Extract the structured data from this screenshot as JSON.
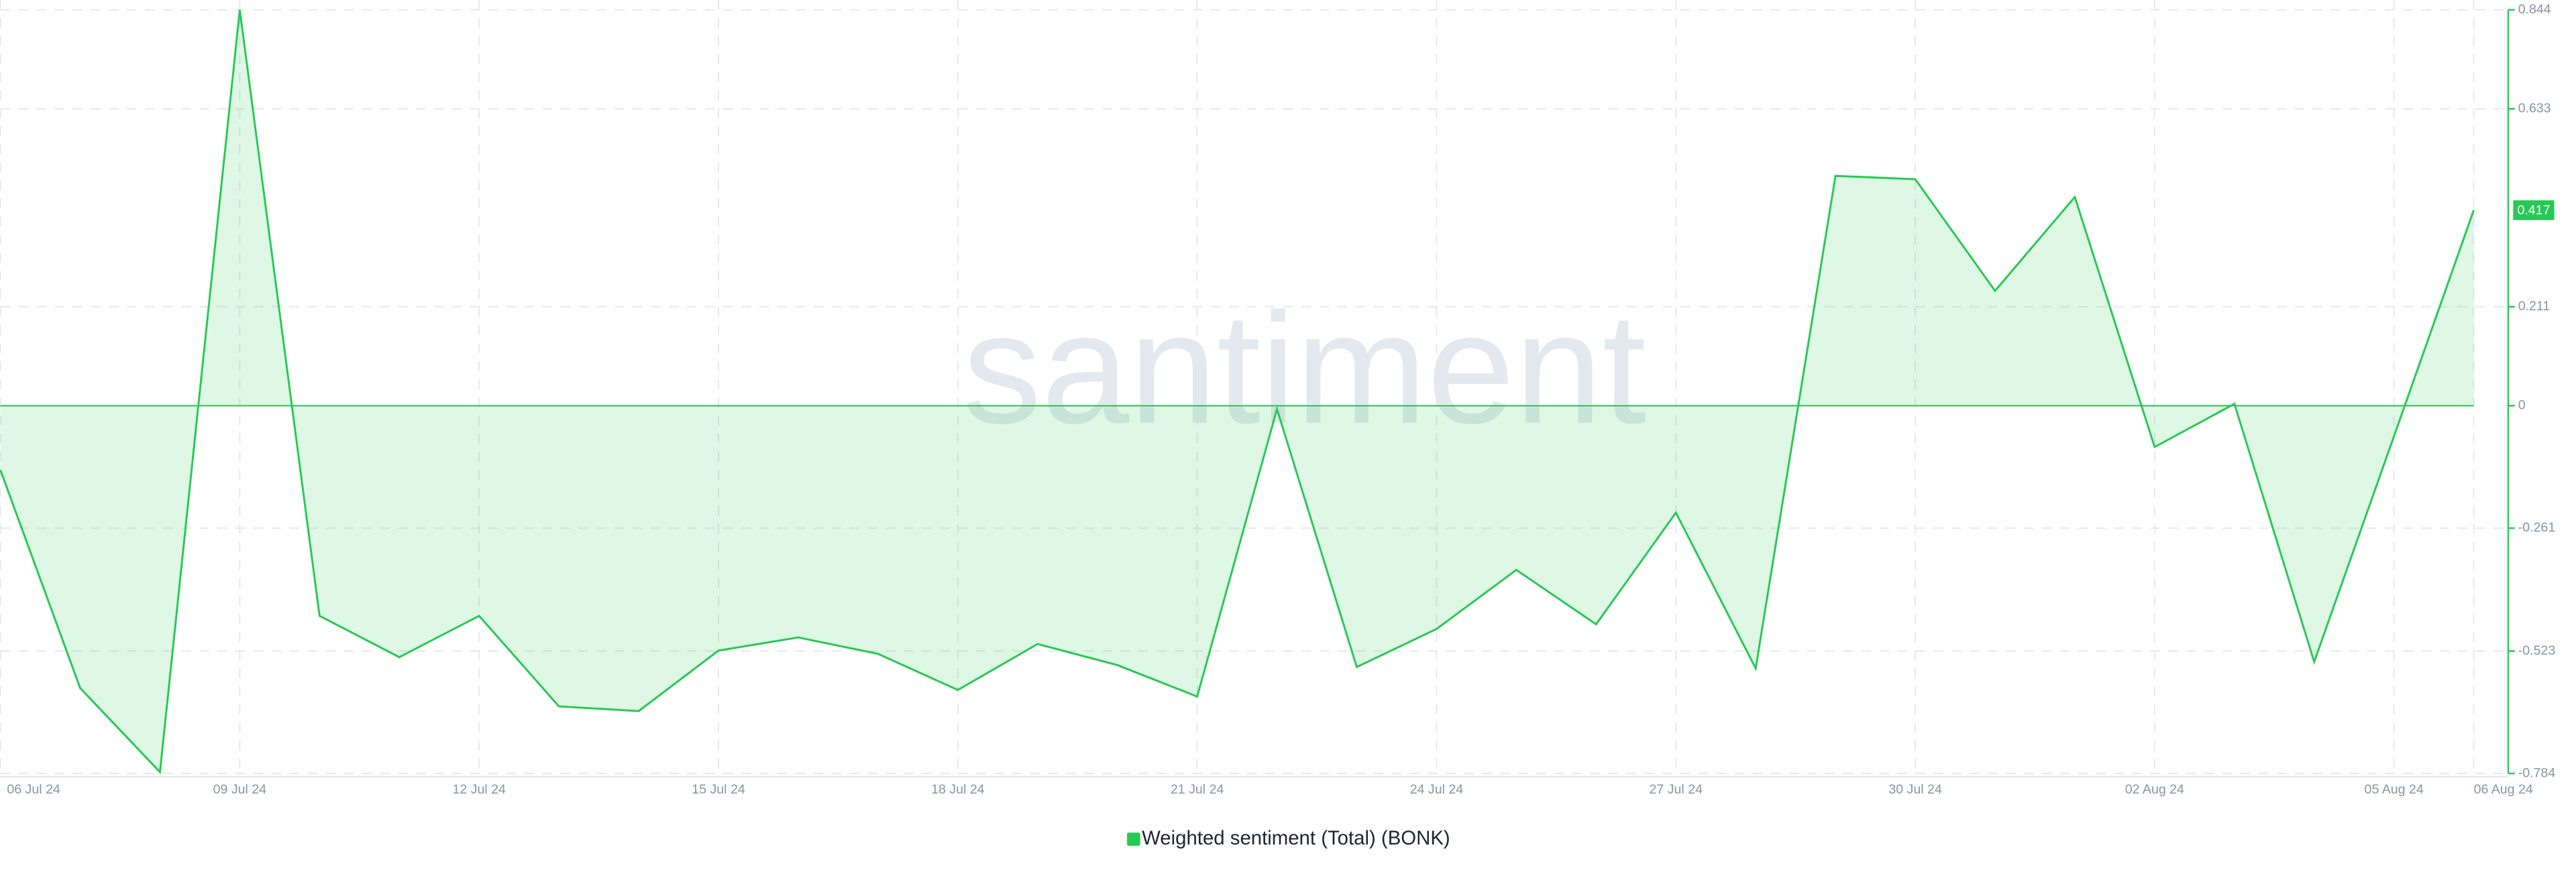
{
  "chart_data": {
    "type": "line",
    "watermark": "santiment",
    "categories": [
      "06 Jul 24",
      null,
      null,
      "09 Jul 24",
      null,
      null,
      "12 Jul 24",
      null,
      null,
      "15 Jul 24",
      null,
      null,
      "18 Jul 24",
      null,
      null,
      "21 Jul 24",
      null,
      null,
      "24 Jul 24",
      null,
      null,
      "27 Jul 24",
      null,
      null,
      "30 Jul 24",
      null,
      null,
      "02 Aug 24",
      null,
      null,
      "05 Aug 24",
      "06 Aug 24"
    ],
    "series": [
      {
        "name": "Weighted sentiment (Total) (BONK)",
        "color": "#26c953",
        "values": [
          -0.137,
          -0.602,
          -0.781,
          0.844,
          -0.448,
          -0.536,
          -0.448,
          -0.641,
          -0.651,
          -0.522,
          -0.494,
          -0.529,
          -0.606,
          -0.508,
          -0.553,
          -0.62,
          -0.007,
          -0.557,
          -0.476,
          -0.35,
          -0.466,
          -0.228,
          -0.56,
          0.49,
          0.483,
          0.245,
          0.445,
          -0.088,
          0.004,
          -0.546,
          -0.065,
          0.417
        ]
      }
    ],
    "ylim": [
      -0.784,
      0.844
    ],
    "yticks": [
      0.844,
      0.633,
      0.211,
      0,
      -0.261,
      -0.523,
      -0.784
    ],
    "grid": true
  }
}
